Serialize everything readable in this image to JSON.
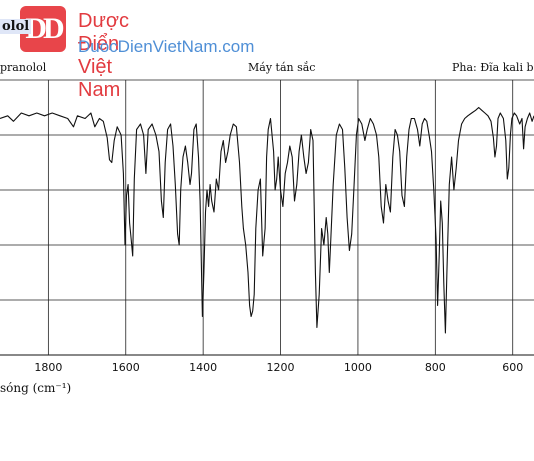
{
  "watermark": {
    "logo_letters": "DD",
    "name": "Dược Điển Việt Nam",
    "url": "DuocDienVietNam.com",
    "colors": {
      "name": "#e23b40",
      "url": "#4f8fd6",
      "logo": "#e8454a"
    }
  },
  "header": {
    "title_fragment": "olol",
    "sample": "pranolol",
    "instrument": "Máy tán sắc",
    "phase": "Pha: Đĩa kali b"
  },
  "chart_data": {
    "type": "line",
    "xlabel": "sóng (cm⁻¹)",
    "ylabel": "",
    "x_ticks": [
      1800,
      1600,
      1400,
      1200,
      1000,
      800,
      600
    ],
    "x_tick_labels": [
      "1800",
      "1600",
      "1400",
      "1200",
      "1000",
      "800",
      "600"
    ],
    "xlim": [
      1925,
      545
    ],
    "ylim": [
      0,
      1
    ],
    "grid": true,
    "series": [
      {
        "values": [
          [
            1925,
            0.86
          ],
          [
            1905,
            0.87
          ],
          [
            1890,
            0.85
          ],
          [
            1870,
            0.88
          ],
          [
            1850,
            0.87
          ],
          [
            1830,
            0.88
          ],
          [
            1810,
            0.87
          ],
          [
            1790,
            0.88
          ],
          [
            1770,
            0.87
          ],
          [
            1750,
            0.86
          ],
          [
            1735,
            0.83
          ],
          [
            1725,
            0.87
          ],
          [
            1705,
            0.86
          ],
          [
            1690,
            0.88
          ],
          [
            1680,
            0.83
          ],
          [
            1668,
            0.86
          ],
          [
            1658,
            0.85
          ],
          [
            1648,
            0.79
          ],
          [
            1642,
            0.71
          ],
          [
            1636,
            0.7
          ],
          [
            1630,
            0.78
          ],
          [
            1622,
            0.83
          ],
          [
            1612,
            0.8
          ],
          [
            1606,
            0.66
          ],
          [
            1602,
            0.4
          ],
          [
            1598,
            0.58
          ],
          [
            1594,
            0.62
          ],
          [
            1590,
            0.48
          ],
          [
            1586,
            0.42
          ],
          [
            1582,
            0.36
          ],
          [
            1578,
            0.64
          ],
          [
            1572,
            0.82
          ],
          [
            1562,
            0.84
          ],
          [
            1554,
            0.8
          ],
          [
            1548,
            0.66
          ],
          [
            1542,
            0.82
          ],
          [
            1532,
            0.84
          ],
          [
            1522,
            0.8
          ],
          [
            1514,
            0.74
          ],
          [
            1508,
            0.56
          ],
          [
            1503,
            0.5
          ],
          [
            1498,
            0.7
          ],
          [
            1492,
            0.82
          ],
          [
            1484,
            0.84
          ],
          [
            1478,
            0.76
          ],
          [
            1472,
            0.62
          ],
          [
            1466,
            0.44
          ],
          [
            1462,
            0.4
          ],
          [
            1458,
            0.6
          ],
          [
            1452,
            0.72
          ],
          [
            1446,
            0.76
          ],
          [
            1440,
            0.7
          ],
          [
            1434,
            0.62
          ],
          [
            1430,
            0.66
          ],
          [
            1424,
            0.82
          ],
          [
            1418,
            0.84
          ],
          [
            1412,
            0.72
          ],
          [
            1408,
            0.56
          ],
          [
            1402,
            0.14
          ],
          [
            1398,
            0.3
          ],
          [
            1394,
            0.52
          ],
          [
            1390,
            0.6
          ],
          [
            1386,
            0.54
          ],
          [
            1382,
            0.62
          ],
          [
            1378,
            0.56
          ],
          [
            1372,
            0.52
          ],
          [
            1366,
            0.64
          ],
          [
            1360,
            0.6
          ],
          [
            1354,
            0.74
          ],
          [
            1348,
            0.78
          ],
          [
            1342,
            0.7
          ],
          [
            1336,
            0.74
          ],
          [
            1330,
            0.8
          ],
          [
            1322,
            0.84
          ],
          [
            1314,
            0.83
          ],
          [
            1306,
            0.7
          ],
          [
            1300,
            0.54
          ],
          [
            1296,
            0.46
          ],
          [
            1290,
            0.4
          ],
          [
            1284,
            0.3
          ],
          [
            1280,
            0.18
          ],
          [
            1276,
            0.14
          ],
          [
            1272,
            0.16
          ],
          [
            1268,
            0.22
          ],
          [
            1264,
            0.46
          ],
          [
            1258,
            0.6
          ],
          [
            1252,
            0.64
          ],
          [
            1246,
            0.36
          ],
          [
            1240,
            0.46
          ],
          [
            1236,
            0.72
          ],
          [
            1232,
            0.82
          ],
          [
            1226,
            0.86
          ],
          [
            1218,
            0.74
          ],
          [
            1214,
            0.6
          ],
          [
            1210,
            0.64
          ],
          [
            1206,
            0.72
          ],
          [
            1200,
            0.6
          ],
          [
            1194,
            0.54
          ],
          [
            1188,
            0.66
          ],
          [
            1182,
            0.7
          ],
          [
            1176,
            0.76
          ],
          [
            1170,
            0.72
          ],
          [
            1164,
            0.56
          ],
          [
            1158,
            0.62
          ],
          [
            1152,
            0.74
          ],
          [
            1146,
            0.8
          ],
          [
            1140,
            0.72
          ],
          [
            1134,
            0.66
          ],
          [
            1128,
            0.7
          ],
          [
            1122,
            0.82
          ],
          [
            1116,
            0.78
          ],
          [
            1110,
            0.3
          ],
          [
            1106,
            0.1
          ],
          [
            1100,
            0.22
          ],
          [
            1094,
            0.46
          ],
          [
            1088,
            0.4
          ],
          [
            1082,
            0.5
          ],
          [
            1078,
            0.44
          ],
          [
            1074,
            0.3
          ],
          [
            1070,
            0.42
          ],
          [
            1064,
            0.62
          ],
          [
            1056,
            0.8
          ],
          [
            1048,
            0.84
          ],
          [
            1040,
            0.82
          ],
          [
            1034,
            0.68
          ],
          [
            1028,
            0.5
          ],
          [
            1022,
            0.38
          ],
          [
            1016,
            0.44
          ],
          [
            1010,
            0.62
          ],
          [
            1004,
            0.8
          ],
          [
            998,
            0.86
          ],
          [
            990,
            0.84
          ],
          [
            982,
            0.78
          ],
          [
            976,
            0.82
          ],
          [
            968,
            0.86
          ],
          [
            960,
            0.84
          ],
          [
            952,
            0.8
          ],
          [
            946,
            0.72
          ],
          [
            940,
            0.54
          ],
          [
            934,
            0.48
          ],
          [
            928,
            0.62
          ],
          [
            922,
            0.56
          ],
          [
            916,
            0.52
          ],
          [
            910,
            0.72
          ],
          [
            904,
            0.82
          ],
          [
            898,
            0.8
          ],
          [
            892,
            0.74
          ],
          [
            886,
            0.58
          ],
          [
            880,
            0.54
          ],
          [
            874,
            0.72
          ],
          [
            868,
            0.82
          ],
          [
            862,
            0.86
          ],
          [
            854,
            0.86
          ],
          [
            846,
            0.82
          ],
          [
            840,
            0.76
          ],
          [
            834,
            0.84
          ],
          [
            828,
            0.86
          ],
          [
            822,
            0.85
          ],
          [
            816,
            0.8
          ],
          [
            810,
            0.74
          ],
          [
            804,
            0.6
          ],
          [
            798,
            0.42
          ],
          [
            794,
            0.18
          ],
          [
            790,
            0.36
          ],
          [
            786,
            0.56
          ],
          [
            782,
            0.48
          ],
          [
            778,
            0.26
          ],
          [
            774,
            0.08
          ],
          [
            770,
            0.3
          ],
          [
            764,
            0.62
          ],
          [
            758,
            0.72
          ],
          [
            752,
            0.6
          ],
          [
            746,
            0.68
          ],
          [
            740,
            0.78
          ],
          [
            732,
            0.84
          ],
          [
            724,
            0.86
          ],
          [
            716,
            0.87
          ],
          [
            706,
            0.88
          ],
          [
            696,
            0.89
          ],
          [
            688,
            0.9
          ],
          [
            680,
            0.89
          ],
          [
            672,
            0.88
          ],
          [
            664,
            0.87
          ],
          [
            656,
            0.85
          ],
          [
            650,
            0.79
          ],
          [
            646,
            0.72
          ],
          [
            642,
            0.76
          ],
          [
            638,
            0.86
          ],
          [
            632,
            0.88
          ],
          [
            624,
            0.86
          ],
          [
            618,
            0.78
          ],
          [
            614,
            0.64
          ],
          [
            610,
            0.68
          ],
          [
            606,
            0.8
          ],
          [
            602,
            0.86
          ],
          [
            596,
            0.88
          ],
          [
            590,
            0.87
          ],
          [
            582,
            0.84
          ],
          [
            576,
            0.86
          ],
          [
            572,
            0.75
          ],
          [
            568,
            0.83
          ],
          [
            562,
            0.86
          ],
          [
            556,
            0.88
          ],
          [
            550,
            0.85
          ],
          [
            545,
            0.87
          ]
        ]
      }
    ]
  }
}
